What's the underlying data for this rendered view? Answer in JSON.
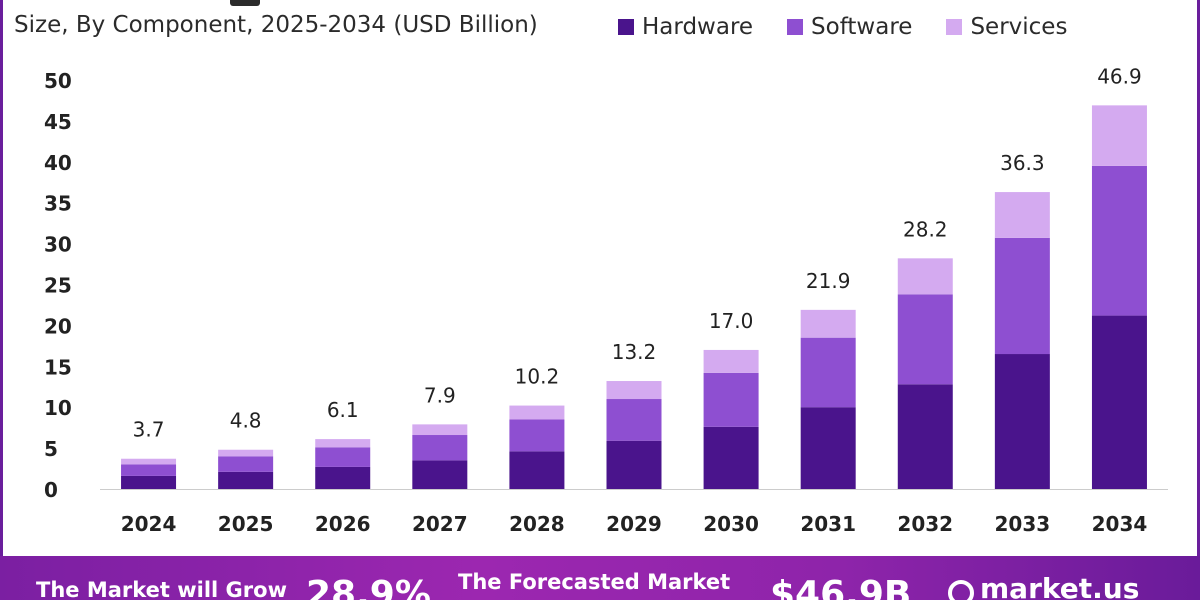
{
  "header": {
    "subtitle": "Size, By Component, 2025-2034 (USD Billion)"
  },
  "legend": [
    {
      "label": "Hardware",
      "color": "#4a148c"
    },
    {
      "label": "Software",
      "color": "#8e4fd1"
    },
    {
      "label": "Services",
      "color": "#d4aaf0"
    }
  ],
  "footer": {
    "grow_text": "The Market will Grow",
    "grow_value": "28.9%",
    "forecast_text": "The Forecasted Market",
    "forecast_value": "$46.9B",
    "brand": "market.us"
  },
  "chart_data": {
    "type": "bar",
    "stacked": true,
    "categories": [
      "2024",
      "2025",
      "2026",
      "2027",
      "2028",
      "2029",
      "2030",
      "2031",
      "2032",
      "2033",
      "2034"
    ],
    "series": [
      {
        "name": "Hardware",
        "color": "#4a148c",
        "values": [
          1.6,
          2.1,
          2.7,
          3.5,
          4.6,
          5.9,
          7.6,
          10.0,
          12.8,
          16.5,
          21.2
        ]
      },
      {
        "name": "Software",
        "color": "#8e4fd1",
        "values": [
          1.4,
          1.9,
          2.4,
          3.1,
          3.9,
          5.1,
          6.6,
          8.5,
          11.0,
          14.2,
          18.3
        ]
      },
      {
        "name": "Services",
        "color": "#d4aaf0",
        "values": [
          0.7,
          0.8,
          1.0,
          1.3,
          1.7,
          2.2,
          2.8,
          3.4,
          4.4,
          5.6,
          7.4
        ]
      }
    ],
    "totals": [
      "3.7",
      "4.8",
      "6.1",
      "7.9",
      "10.2",
      "13.2",
      "17.0",
      "21.9",
      "28.2",
      "36.3",
      "46.9"
    ],
    "ylim": [
      0,
      50
    ],
    "yticks": [
      0,
      5,
      10,
      15,
      20,
      25,
      30,
      35,
      40,
      45,
      50
    ],
    "grid": false,
    "legend_position": "top-right"
  }
}
